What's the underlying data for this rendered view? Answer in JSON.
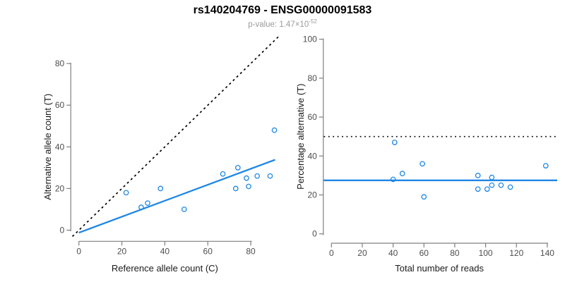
{
  "header": {
    "title": "rs140204769 - ENSG00000091583",
    "pvalue_prefix": "p-value: ",
    "pvalue_mantissa": "1.47×10",
    "pvalue_exponent": "-52"
  },
  "colors": {
    "accent_blue": "#1f87e5",
    "line_black": "#000000",
    "axis_gray": "#7f7f7f",
    "tick_label_gray": "#4d4d4d",
    "subtitle_gray": "#9a9a9a"
  },
  "chart_data": [
    {
      "type": "scatter",
      "panel": "left",
      "xlabel": "Reference allele count (C)",
      "ylabel": "Alternative allele count (T)",
      "xticks": [
        0,
        20,
        40,
        60,
        80
      ],
      "yticks": [
        0,
        20,
        40,
        60,
        80
      ],
      "xlim": [
        -4,
        94
      ],
      "ylim": [
        -4,
        92
      ],
      "grid": false,
      "legend": "none",
      "point_color": "#1f87e5",
      "points": [
        [
          22,
          18
        ],
        [
          29,
          11
        ],
        [
          32,
          13
        ],
        [
          38,
          20
        ],
        [
          49,
          10
        ],
        [
          67,
          27
        ],
        [
          73,
          20
        ],
        [
          74,
          30
        ],
        [
          78,
          25
        ],
        [
          79,
          21
        ],
        [
          83,
          26
        ],
        [
          89,
          26
        ],
        [
          91,
          48
        ]
      ],
      "lines": [
        {
          "name": "identity-line",
          "style": "dashed",
          "color": "#000000",
          "x1": -3,
          "y1": -3,
          "x2": 93.5,
          "y2": 93.5
        },
        {
          "name": "fit-line",
          "style": "solid",
          "color": "#1f87e5",
          "x1": 0,
          "y1": -1.2,
          "x2": 91.3,
          "y2": 33.8,
          "slope": 0.377
        }
      ]
    },
    {
      "type": "scatter",
      "panel": "right",
      "xlabel": "Total number of reads",
      "ylabel": "Percentage alternative (T)",
      "xticks": [
        0,
        20,
        40,
        60,
        80,
        100,
        120,
        140
      ],
      "yticks": [
        0,
        20,
        40,
        60,
        80,
        100
      ],
      "xlim": [
        -5,
        147
      ],
      "ylim": [
        0,
        100
      ],
      "grid": false,
      "legend": "none",
      "point_color": "#1f87e5",
      "points": [
        [
          41,
          47
        ],
        [
          40,
          28
        ],
        [
          46,
          31
        ],
        [
          59,
          36
        ],
        [
          60,
          19
        ],
        [
          95,
          30
        ],
        [
          95,
          23
        ],
        [
          101,
          23
        ],
        [
          104,
          29
        ],
        [
          104,
          25
        ],
        [
          110,
          25
        ],
        [
          116,
          24
        ],
        [
          139,
          35
        ]
      ],
      "lines": [
        {
          "name": "reference-line",
          "style": "dotted",
          "color": "#000000",
          "y": 50
        },
        {
          "name": "mean-line",
          "style": "solid",
          "color": "#1f87e5",
          "y": 27.5
        }
      ]
    }
  ]
}
